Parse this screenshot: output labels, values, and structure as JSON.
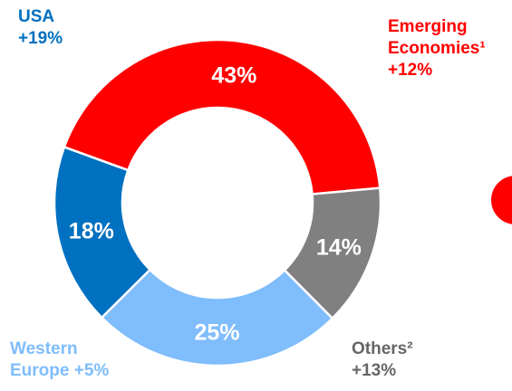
{
  "chart_data": {
    "type": "pie",
    "variant": "donut",
    "categories": [
      "Emerging Economies¹",
      "Others²",
      "Western Europe",
      "USA"
    ],
    "values": [
      43,
      14,
      25,
      18
    ],
    "value_labels": [
      "43%",
      "14%",
      "25%",
      "18%"
    ],
    "colors": [
      "#ff0000",
      "#808080",
      "#7fbdfc",
      "#0070c0"
    ],
    "callouts": [
      {
        "id": "usa",
        "lines": [
          "USA",
          "+19%"
        ],
        "color": "#0070c0"
      },
      {
        "id": "emerging",
        "lines": [
          "Emerging",
          "Economies¹",
          "+12%"
        ],
        "color": "#ff0000"
      },
      {
        "id": "western",
        "lines": [
          "Western",
          "Europe +5%"
        ],
        "color": "#7fbdfc"
      },
      {
        "id": "others",
        "lines": [
          "Others²",
          "+13%"
        ],
        "color": "#666666"
      }
    ],
    "title": "",
    "legend": "none"
  },
  "edge_marker_color": "#ff0000"
}
